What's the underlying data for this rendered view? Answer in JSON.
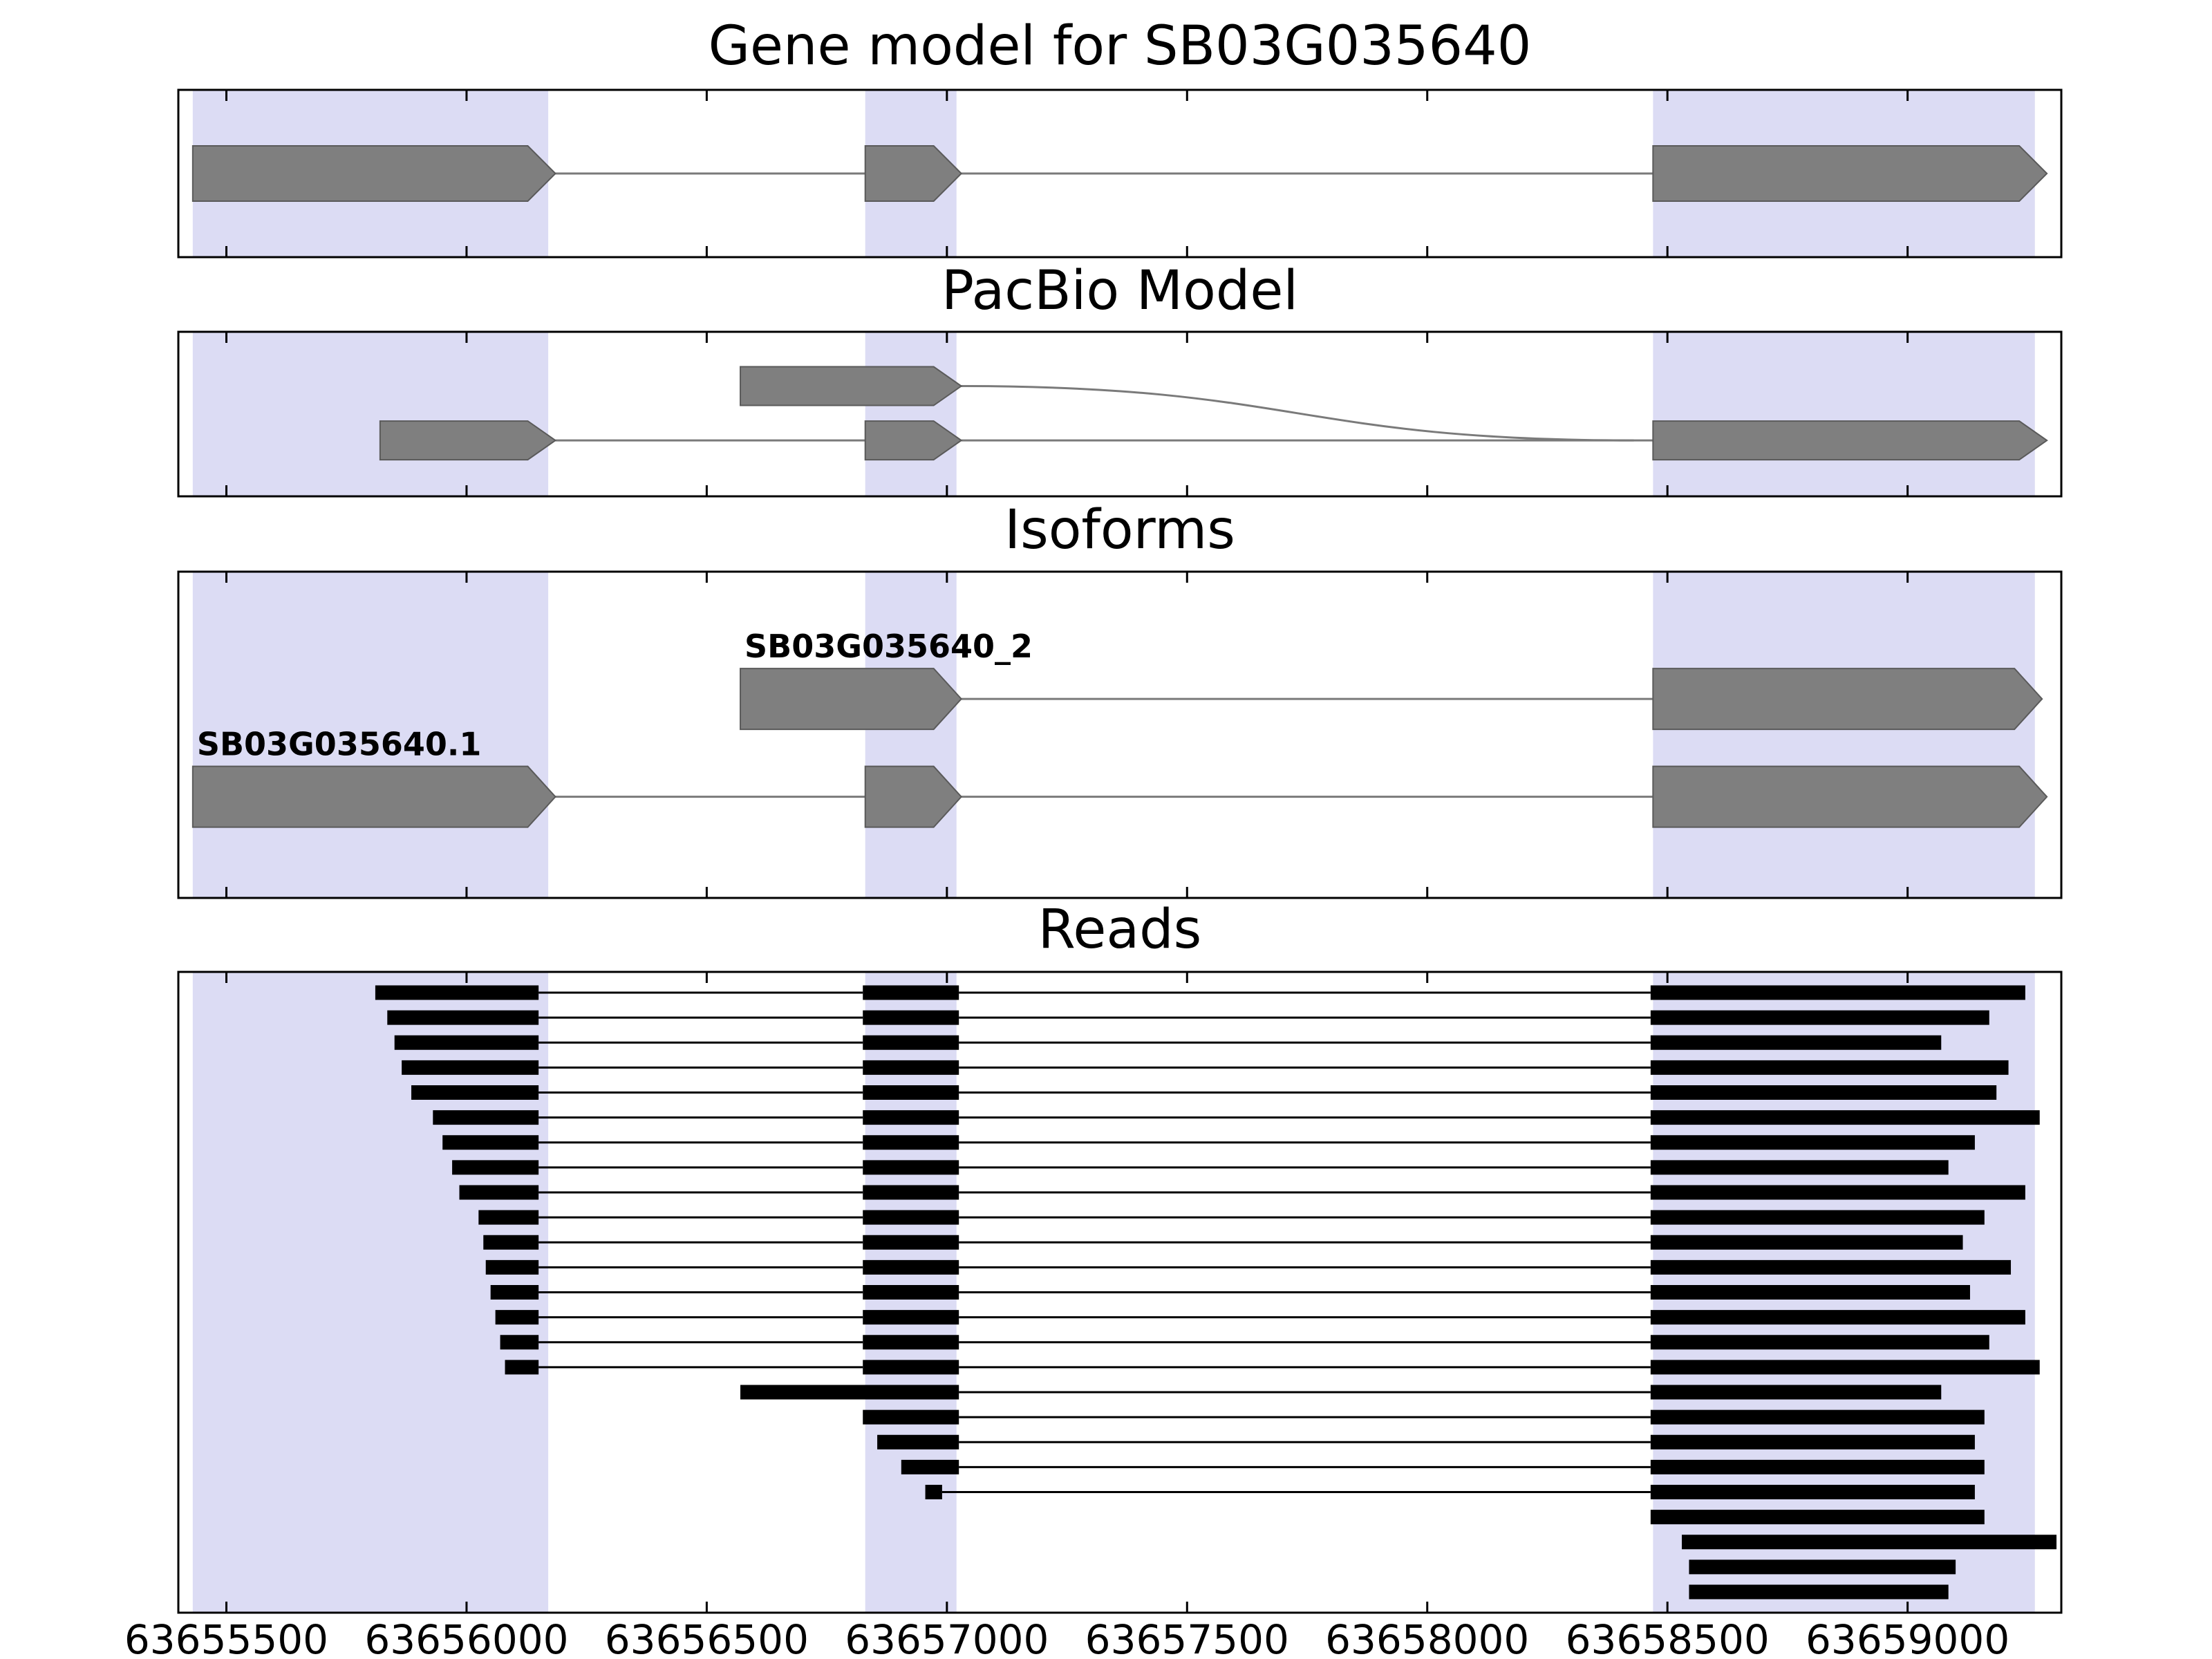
{
  "chart_data": {
    "type": "genome-browser-track-plot",
    "x_domain": [
      63655400,
      63659320
    ],
    "x_ticks": [
      63655500,
      63656000,
      63656500,
      63657000,
      63657500,
      63658000,
      63658500,
      63659000
    ],
    "x_tick_labels": [
      "63655500",
      "63656000",
      "63656500",
      "63657000",
      "63657500",
      "63658000",
      "63658500",
      "63659000"
    ],
    "highlights": [
      [
        63655430,
        63656170
      ],
      [
        63656830,
        63657020
      ],
      [
        63658470,
        63659265
      ]
    ],
    "style": {
      "background": "#ffffff",
      "highlight_color": "#dcdcf4",
      "exon_color": "#7f7f7f",
      "exon_edge_color": "#5a5a5a",
      "intron_color": "#7a7a7a",
      "read_color": "#000000",
      "border_color": "#000000"
    },
    "panels": [
      {
        "name": "gene_model",
        "title": "Gene model for SB03G035640",
        "transcripts": [
          {
            "label": "",
            "arrow": true,
            "exons": [
              [
                63655430,
                63656185
              ],
              [
                63656830,
                63657030
              ],
              [
                63658470,
                63659290
              ]
            ]
          }
        ]
      },
      {
        "name": "pacbio_model",
        "title": "PacBio Model",
        "transcripts": [
          {
            "label": "",
            "arrow": true,
            "exons": [
              [
                63656570,
                63657030
              ]
            ],
            "junction": {
              "from": 63657030,
              "to": 63658430,
              "to_row": 1
            }
          },
          {
            "label": "",
            "arrow": true,
            "exons": [
              [
                63655820,
                63656185
              ],
              [
                63656830,
                63657030
              ],
              [
                63658470,
                63659290
              ]
            ]
          }
        ]
      },
      {
        "name": "isoforms",
        "title": "Isoforms",
        "transcripts": [
          {
            "label": "SB03G035640_2",
            "arrow": true,
            "exons": [
              [
                63656570,
                63657030
              ],
              [
                63658470,
                63659280
              ]
            ]
          },
          {
            "label": "SB03G035640.1",
            "arrow": true,
            "exons": [
              [
                63655430,
                63656185
              ],
              [
                63656830,
                63657030
              ],
              [
                63658470,
                63659290
              ]
            ]
          }
        ]
      },
      {
        "name": "reads",
        "title": "Reads",
        "reads": [
          [
            [
              63655810,
              63656150
            ],
            [
              63656825,
              63657025
            ],
            [
              63658465,
              63659245
            ]
          ],
          [
            [
              63655835,
              63656150
            ],
            [
              63656825,
              63657025
            ],
            [
              63658465,
              63659170
            ]
          ],
          [
            [
              63655850,
              63656150
            ],
            [
              63656825,
              63657025
            ],
            [
              63658465,
              63659070
            ]
          ],
          [
            [
              63655865,
              63656150
            ],
            [
              63656825,
              63657025
            ],
            [
              63658465,
              63659210
            ]
          ],
          [
            [
              63655885,
              63656150
            ],
            [
              63656825,
              63657025
            ],
            [
              63658465,
              63659185
            ]
          ],
          [
            [
              63655930,
              63656150
            ],
            [
              63656825,
              63657025
            ],
            [
              63658465,
              63659275
            ]
          ],
          [
            [
              63655950,
              63656150
            ],
            [
              63656825,
              63657025
            ],
            [
              63658465,
              63659140
            ]
          ],
          [
            [
              63655970,
              63656150
            ],
            [
              63656825,
              63657025
            ],
            [
              63658465,
              63659085
            ]
          ],
          [
            [
              63655985,
              63656150
            ],
            [
              63656825,
              63657025
            ],
            [
              63658465,
              63659245
            ]
          ],
          [
            [
              63656025,
              63656150
            ],
            [
              63656825,
              63657025
            ],
            [
              63658465,
              63659160
            ]
          ],
          [
            [
              63656035,
              63656150
            ],
            [
              63656825,
              63657025
            ],
            [
              63658465,
              63659115
            ]
          ],
          [
            [
              63656040,
              63656150
            ],
            [
              63656825,
              63657025
            ],
            [
              63658465,
              63659215
            ]
          ],
          [
            [
              63656050,
              63656150
            ],
            [
              63656825,
              63657025
            ],
            [
              63658465,
              63659130
            ]
          ],
          [
            [
              63656060,
              63656150
            ],
            [
              63656825,
              63657025
            ],
            [
              63658465,
              63659245
            ]
          ],
          [
            [
              63656070,
              63656150
            ],
            [
              63656825,
              63657025
            ],
            [
              63658465,
              63659170
            ]
          ],
          [
            [
              63656080,
              63656150
            ],
            [
              63656825,
              63657025
            ],
            [
              63658465,
              63659275
            ]
          ],
          [
            [
              63656570,
              63657025
            ],
            [
              63658465,
              63659070
            ]
          ],
          [
            [
              63656825,
              63657025
            ],
            [
              63658465,
              63659160
            ]
          ],
          [
            [
              63656855,
              63657025
            ],
            [
              63658465,
              63659140
            ]
          ],
          [
            [
              63656905,
              63657025
            ],
            [
              63658465,
              63659160
            ]
          ],
          [
            [
              63656955,
              63656990
            ],
            [
              63658465,
              63659140
            ]
          ],
          [
            [
              63658465,
              63659160
            ]
          ],
          [
            [
              63658530,
              63659310
            ]
          ],
          [
            [
              63658545,
              63659100
            ]
          ],
          [
            [
              63658545,
              63659085
            ]
          ]
        ]
      }
    ]
  }
}
